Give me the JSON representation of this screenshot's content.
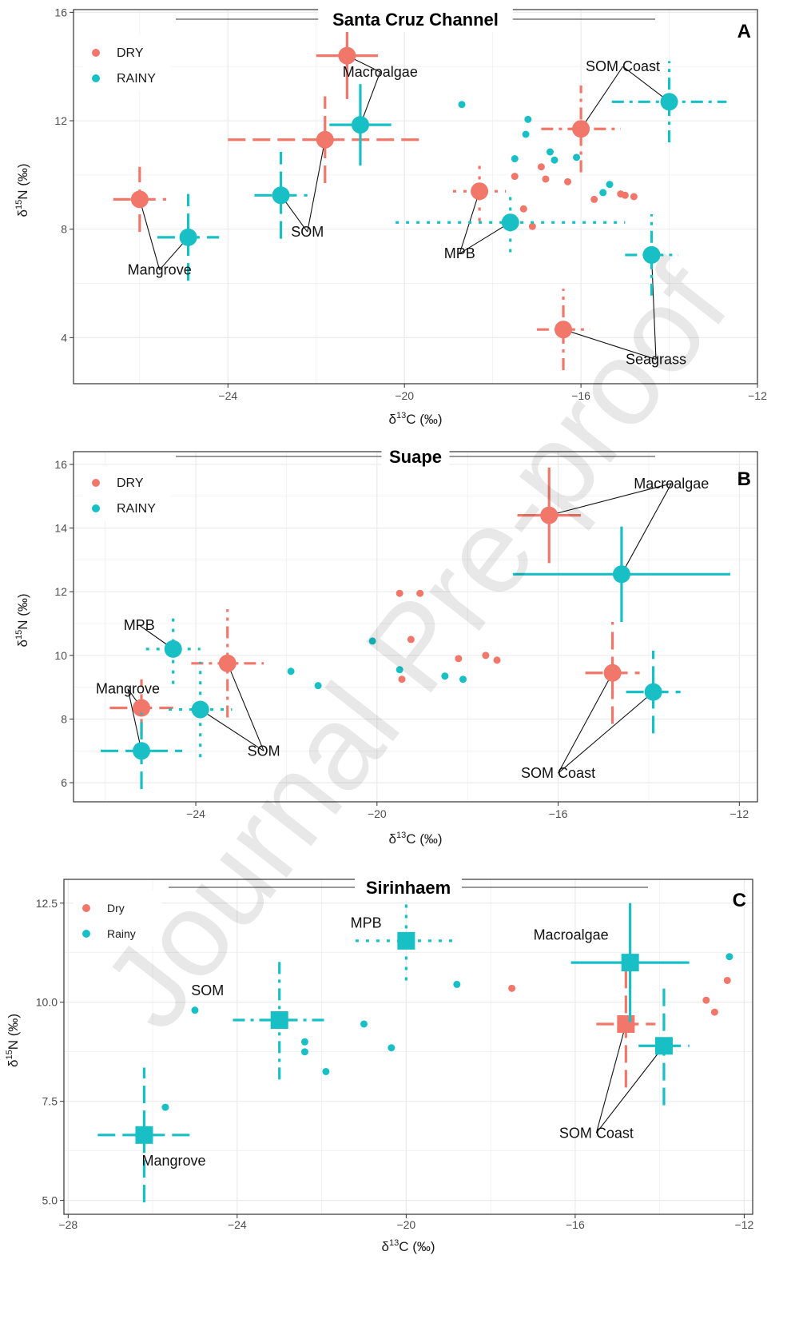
{
  "watermark": "Journal Pre-proof",
  "colors": {
    "dry": "#F0776A",
    "rainy": "#18BFC4",
    "grid": "#EBEBEB",
    "axis": "#333333"
  },
  "chart_data": [
    {
      "type": "scatter",
      "title": "Santa Cruz Channel",
      "panel_label": "A",
      "xlabel": "δ13C (‰)",
      "ylabel": "δ15N (‰)",
      "xlim": [
        -27.5,
        -12
      ],
      "ylim": [
        2.3,
        16.1
      ],
      "xticks": [
        -24,
        -20,
        -16,
        -12
      ],
      "yticks": [
        4,
        8,
        12,
        16
      ],
      "tick_labels_x": [
        "−24",
        "−20",
        "−16",
        "−12"
      ],
      "tick_labels_y": [
        "4",
        "8",
        "12",
        "16"
      ],
      "legend": [
        {
          "label": "DRY",
          "series": "dry"
        },
        {
          "label": "RAINY",
          "series": "rainy"
        }
      ],
      "series": [
        {
          "name": "DRY",
          "key": "dry",
          "color": "#F0776A",
          "points": [
            {
              "x": -26.0,
              "y": 9.1,
              "xerr": 0.6,
              "yerr": 1.2,
              "dash": "long",
              "source": "Mangrove"
            },
            {
              "x": -21.8,
              "y": 11.3,
              "xerr": 2.2,
              "yerr": 1.6,
              "dash": "long",
              "source": "SOM"
            },
            {
              "x": -21.3,
              "y": 14.4,
              "xerr": 0.7,
              "yerr": 1.6,
              "dash": "solid",
              "source": "Macroalgae"
            },
            {
              "x": -18.3,
              "y": 9.4,
              "xerr": 0.6,
              "yerr": 1.1,
              "dash": "dot",
              "source": "MPB"
            },
            {
              "x": -16.0,
              "y": 11.7,
              "xerr": 0.9,
              "yerr": 1.6,
              "dash": "dashdot",
              "source": "SOM Coast"
            },
            {
              "x": -16.4,
              "y": 4.3,
              "xerr": 0.6,
              "yerr": 1.5,
              "dash": "dashdot",
              "source": "Seagrass"
            }
          ],
          "consumers": [
            [
              -17.5,
              9.95
            ],
            [
              -17.3,
              8.75
            ],
            [
              -17.1,
              8.1
            ],
            [
              -16.9,
              10.3
            ],
            [
              -16.8,
              9.85
            ],
            [
              -16.3,
              9.75
            ],
            [
              -15.7,
              9.1
            ],
            [
              -15.1,
              9.3
            ],
            [
              -15.0,
              9.25
            ],
            [
              -14.8,
              9.2
            ]
          ]
        },
        {
          "name": "RAINY",
          "key": "rainy",
          "color": "#18BFC4",
          "points": [
            {
              "x": -24.9,
              "y": 7.7,
              "xerr": 0.7,
              "yerr": 1.6,
              "dash": "long",
              "source": "Mangrove"
            },
            {
              "x": -22.8,
              "y": 9.25,
              "xerr": 0.6,
              "yerr": 1.6,
              "dash": "long",
              "source": "SOM"
            },
            {
              "x": -21.0,
              "y": 11.85,
              "xerr": 0.7,
              "yerr": 1.5,
              "dash": "solid",
              "source": "Macroalgae"
            },
            {
              "x": -17.6,
              "y": 8.25,
              "xerr": 2.6,
              "yerr": 1.1,
              "dash": "dot",
              "source": "MPB"
            },
            {
              "x": -14.0,
              "y": 12.7,
              "xerr": 1.3,
              "yerr": 1.5,
              "dash": "dashdot",
              "source": "SOM Coast"
            },
            {
              "x": -14.4,
              "y": 7.05,
              "xerr": 0.6,
              "yerr": 1.5,
              "dash": "dashdot",
              "source": "Seagrass"
            }
          ],
          "consumers": [
            [
              -18.7,
              12.6
            ],
            [
              -17.2,
              12.05
            ],
            [
              -17.25,
              11.5
            ],
            [
              -16.7,
              10.85
            ],
            [
              -16.6,
              10.55
            ],
            [
              -17.5,
              10.6
            ],
            [
              -16.1,
              10.65
            ],
            [
              -15.35,
              9.65
            ],
            [
              -15.5,
              9.35
            ]
          ]
        }
      ],
      "annotations": [
        {
          "text": "Mangrove",
          "x": -25.55,
          "y": 6.5,
          "targets": [
            [
              -26.0,
              9.1
            ],
            [
              -24.9,
              7.7
            ]
          ]
        },
        {
          "text": "SOM",
          "x": -22.2,
          "y": 7.9,
          "targets": [
            [
              -21.8,
              11.3
            ],
            [
              -22.8,
              9.25
            ]
          ]
        },
        {
          "text": "Macroalgae",
          "x": -20.55,
          "y": 13.8,
          "targets": [
            [
              -21.3,
              14.4
            ],
            [
              -21.0,
              11.85
            ]
          ]
        },
        {
          "text": "MPB",
          "x": -18.75,
          "y": 7.1,
          "targets": [
            [
              -18.3,
              9.4
            ],
            [
              -17.6,
              8.25
            ]
          ]
        },
        {
          "text": "SOM Coast",
          "x": -15.05,
          "y": 14.0,
          "targets": [
            [
              -16.0,
              11.7
            ],
            [
              -14.0,
              12.7
            ]
          ]
        },
        {
          "text": "Seagrass",
          "x": -14.3,
          "y": 3.2,
          "targets": [
            [
              -16.4,
              4.3
            ],
            [
              -14.4,
              7.05
            ]
          ]
        }
      ],
      "marker": "circle",
      "grid": true
    },
    {
      "type": "scatter",
      "title": "Suape",
      "panel_label": "B",
      "xlabel": "δ13C (‰)",
      "ylabel": "δ15N (‰)",
      "xlim": [
        -26.7,
        -11.6
      ],
      "ylim": [
        5.4,
        16.4
      ],
      "xticks": [
        -24,
        -20,
        -16,
        -12
      ],
      "yticks": [
        6,
        8,
        10,
        12,
        14,
        16
      ],
      "tick_labels_x": [
        "−24",
        "−20",
        "−16",
        "−12"
      ],
      "tick_labels_y": [
        "6",
        "8",
        "10",
        "12",
        "14",
        "16"
      ],
      "legend": [
        {
          "label": "DRY",
          "series": "dry"
        },
        {
          "label": "RAINY",
          "series": "rainy"
        }
      ],
      "series": [
        {
          "name": "DRY",
          "key": "dry",
          "color": "#F0776A",
          "points": [
            {
              "x": -16.2,
              "y": 14.4,
              "xerr": 0.7,
              "yerr": 1.5,
              "dash": "solid",
              "source": "Macroalgae"
            },
            {
              "x": -25.2,
              "y": 8.35,
              "xerr": 0.7,
              "yerr": 0.9,
              "dash": "long",
              "source": "Mangrove"
            },
            {
              "x": -23.3,
              "y": 9.75,
              "xerr": 0.8,
              "yerr": 1.7,
              "dash": "dashdot",
              "source": "SOM"
            },
            {
              "x": -14.8,
              "y": 9.45,
              "xerr": 0.6,
              "yerr": 1.6,
              "dash": "long",
              "source": "SOM Coast"
            }
          ],
          "consumers": [
            [
              -19.5,
              11.95
            ],
            [
              -19.05,
              11.95
            ],
            [
              -19.25,
              10.5
            ],
            [
              -19.45,
              9.25
            ],
            [
              -18.2,
              9.9
            ],
            [
              -17.6,
              10.0
            ],
            [
              -17.35,
              9.85
            ]
          ]
        },
        {
          "name": "RAINY",
          "key": "rainy",
          "color": "#18BFC4",
          "points": [
            {
              "x": -14.6,
              "y": 12.55,
              "xerr": 2.4,
              "yerr": 1.5,
              "dash": "solid",
              "source": "Macroalgae"
            },
            {
              "x": -24.5,
              "y": 10.2,
              "xerr": 0.6,
              "yerr": 1.1,
              "dash": "dot",
              "source": "MPB"
            },
            {
              "x": -25.2,
              "y": 7.0,
              "xerr": 0.9,
              "yerr": 1.2,
              "dash": "long",
              "source": "Mangrove"
            },
            {
              "x": -23.9,
              "y": 8.3,
              "xerr": 0.7,
              "yerr": 1.5,
              "dash": "dot",
              "source": "SOM"
            },
            {
              "x": -13.9,
              "y": 8.85,
              "xerr": 0.6,
              "yerr": 1.3,
              "dash": "long",
              "source": "SOM Coast"
            }
          ],
          "consumers": [
            [
              -21.9,
              9.5
            ],
            [
              -21.3,
              9.05
            ],
            [
              -20.1,
              10.45
            ],
            [
              -19.5,
              9.55
            ],
            [
              -18.5,
              9.35
            ],
            [
              -18.1,
              9.25
            ]
          ]
        }
      ],
      "annotations": [
        {
          "text": "Macroalgae",
          "x": -13.5,
          "y": 15.4,
          "targets": [
            [
              -16.2,
              14.4
            ],
            [
              -14.6,
              12.55
            ]
          ]
        },
        {
          "text": "MPB",
          "x": -25.25,
          "y": 10.95,
          "targets": [
            [
              -24.5,
              10.2
            ]
          ]
        },
        {
          "text": "Mangrove",
          "x": -25.5,
          "y": 8.95,
          "targets": [
            [
              -25.2,
              8.35
            ],
            [
              -25.2,
              7.0
            ]
          ]
        },
        {
          "text": "SOM",
          "x": -22.5,
          "y": 7.0,
          "targets": [
            [
              -23.3,
              9.75
            ],
            [
              -23.9,
              8.3
            ]
          ]
        },
        {
          "text": "SOM Coast",
          "x": -16.0,
          "y": 6.3,
          "targets": [
            [
              -14.8,
              9.45
            ],
            [
              -13.9,
              8.85
            ]
          ]
        }
      ],
      "marker": "circle",
      "grid": true
    },
    {
      "type": "scatter",
      "title": "Sirinhaem",
      "panel_label": "C",
      "xlabel": "δ13C (‰)",
      "ylabel": "δ15N (‰)",
      "xlim": [
        -28.1,
        -11.8
      ],
      "ylim": [
        4.65,
        13.1
      ],
      "xticks": [
        -28,
        -24,
        -20,
        -16,
        -12
      ],
      "yticks": [
        5.0,
        7.5,
        10.0,
        12.5
      ],
      "tick_labels_x": [
        "−28",
        "−24",
        "−20",
        "−16",
        "−12"
      ],
      "tick_labels_y": [
        "5.0",
        "7.5",
        "10.0",
        "12.5"
      ],
      "legend": [
        {
          "label": "Dry",
          "series": "dry"
        },
        {
          "label": "Rainy",
          "series": "rainy"
        }
      ],
      "series": [
        {
          "name": "Dry",
          "key": "dry",
          "color": "#F0776A",
          "points": [
            {
              "x": -14.8,
              "y": 9.45,
              "xerr": 0.7,
              "yerr": 1.6,
              "dash": "long",
              "source": "SOM Coast"
            }
          ],
          "consumers": [
            [
              -17.5,
              10.35
            ],
            [
              -12.9,
              10.05
            ],
            [
              -12.4,
              10.55
            ],
            [
              -12.7,
              9.75
            ]
          ]
        },
        {
          "name": "Rainy",
          "key": "rainy",
          "color": "#18BFC4",
          "points": [
            {
              "x": -26.2,
              "y": 6.65,
              "xerr": 1.1,
              "yerr": 1.7,
              "dash": "long",
              "source": "Mangrove"
            },
            {
              "x": -23.0,
              "y": 9.55,
              "xerr": 1.1,
              "yerr": 1.5,
              "dash": "dashdot",
              "source": "SOM"
            },
            {
              "x": -20.0,
              "y": 11.55,
              "xerr": 1.2,
              "yerr": 1.0,
              "dash": "dot",
              "source": "MPB"
            },
            {
              "x": -14.7,
              "y": 11.0,
              "xerr": 1.4,
              "yerr": 1.5,
              "dash": "solid",
              "source": "Macroalgae"
            },
            {
              "x": -13.9,
              "y": 8.9,
              "xerr": 0.6,
              "yerr": 1.5,
              "dash": "long",
              "source": "SOM Coast"
            }
          ],
          "consumers": [
            [
              -25.7,
              7.35
            ],
            [
              -25.0,
              9.8
            ],
            [
              -22.4,
              9.0
            ],
            [
              -22.4,
              8.75
            ],
            [
              -21.9,
              8.25
            ],
            [
              -21.0,
              9.45
            ],
            [
              -20.35,
              8.85
            ],
            [
              -18.8,
              10.45
            ],
            [
              -12.35,
              11.15
            ]
          ]
        }
      ],
      "annotations": [
        {
          "text": "Mangrove",
          "x": -25.5,
          "y": 6.0,
          "targets": []
        },
        {
          "text": "SOM",
          "x": -24.7,
          "y": 10.3,
          "targets": []
        },
        {
          "text": "MPB",
          "x": -20.95,
          "y": 12.0,
          "targets": []
        },
        {
          "text": "Macroalgae",
          "x": -16.1,
          "y": 11.7,
          "targets": []
        },
        {
          "text": "SOM Coast",
          "x": -15.5,
          "y": 6.7,
          "targets": [
            [
              -14.8,
              9.45
            ],
            [
              -13.9,
              8.9
            ]
          ]
        }
      ],
      "marker": "square",
      "grid": true
    }
  ]
}
